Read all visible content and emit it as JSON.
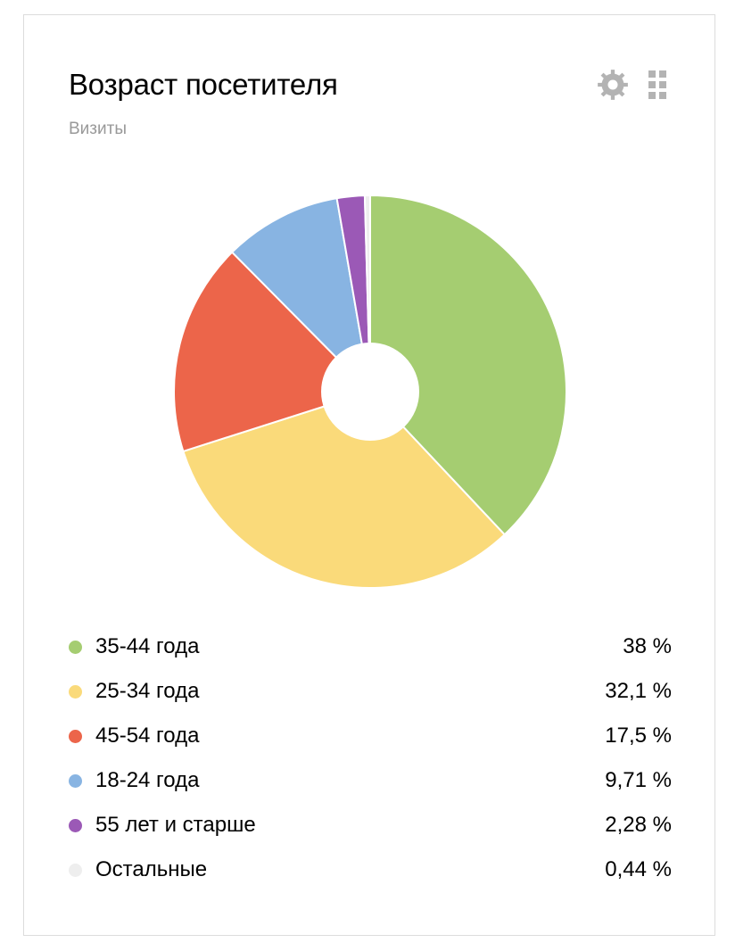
{
  "widget": {
    "title": "Возраст посетителя",
    "subtitle": "Визиты",
    "settings_icon": "gear-icon",
    "drag_icon": "drag-handle-icon",
    "icon_color": "#b3b3b3"
  },
  "chart_data": {
    "type": "pie",
    "title": "Возраст посетителя",
    "subtitle": "Визиты",
    "donut": true,
    "start_angle_deg": 0,
    "direction": "clockwise",
    "legend_position": "bottom",
    "slices": [
      {
        "label": "35-44 года",
        "value": 38,
        "display": "38 %",
        "color": "#a5cd71"
      },
      {
        "label": "25-34 года",
        "value": 32.1,
        "display": "32,1 %",
        "color": "#fada7a"
      },
      {
        "label": "45-54 года",
        "value": 17.5,
        "display": "17,5 %",
        "color": "#ec654a"
      },
      {
        "label": "18-24 года",
        "value": 9.71,
        "display": "9,71 %",
        "color": "#88b4e2"
      },
      {
        "label": "55 лет и старше",
        "value": 2.28,
        "display": "2,28 %",
        "color": "#9b59b6"
      },
      {
        "label": "Остальные",
        "value": 0.44,
        "display": "0,44 %",
        "color": "#eeeeee"
      }
    ]
  }
}
